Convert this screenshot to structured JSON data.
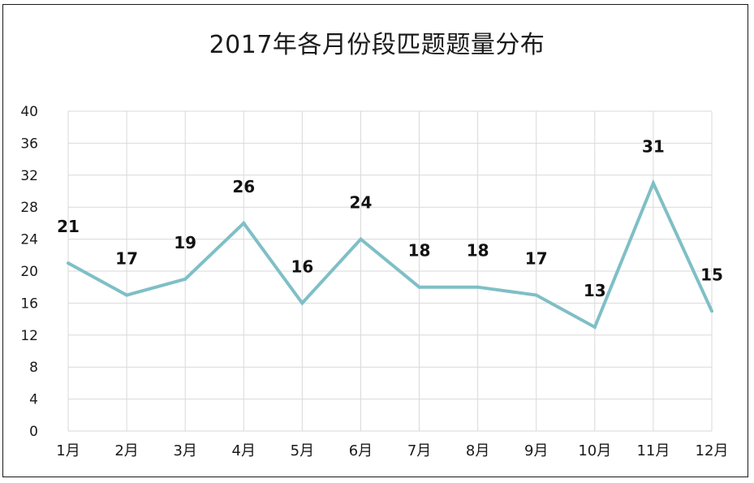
{
  "chart_data": {
    "type": "line",
    "title": "2017年各月份段匹题题量分布",
    "categories": [
      "1月",
      "2月",
      "3月",
      "4月",
      "5月",
      "6月",
      "7月",
      "8月",
      "9月",
      "10月",
      "11月",
      "12月"
    ],
    "series": [
      {
        "values": [
          21,
          17,
          19,
          26,
          16,
          24,
          18,
          18,
          17,
          13,
          31,
          15
        ]
      }
    ],
    "ylim": [
      0,
      40
    ],
    "yticks": [
      "0",
      "4",
      "8",
      "12",
      "16",
      "20",
      "24",
      "28",
      "32",
      "36",
      "40"
    ],
    "grid": true,
    "line_color": "#7fbfc6",
    "grid_color": "#d9d9d9",
    "data_labels": true
  }
}
